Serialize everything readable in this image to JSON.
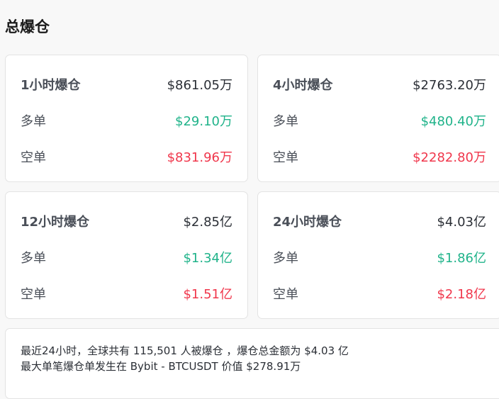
{
  "title": "总爆仓",
  "colors": {
    "long": "#20b38a",
    "short": "#f0374c"
  },
  "cards": [
    {
      "label": "1小时爆仓",
      "total": "$861.05万",
      "long_label": "多单",
      "long": "$29.10万",
      "short_label": "空单",
      "short": "$831.96万"
    },
    {
      "label": "4小时爆仓",
      "total": "$2763.20万",
      "long_label": "多单",
      "long": "$480.40万",
      "short_label": "空单",
      "short": "$2282.80万"
    },
    {
      "label": "12小时爆仓",
      "total": "$2.85亿",
      "long_label": "多单",
      "long": "$1.34亿",
      "short_label": "空单",
      "short": "$1.51亿"
    },
    {
      "label": "24小时爆仓",
      "total": "$4.03亿",
      "long_label": "多单",
      "long": "$1.86亿",
      "short_label": "空单",
      "short": "$2.18亿"
    }
  ],
  "summary": {
    "line1": "最近24小时，全球共有 115,501 人被爆仓 ，爆仓总金额为 $4.03 亿",
    "line2": "最大单笔爆仓单发生在 Bybit - BTCUSDT 价值 $278.91万"
  }
}
